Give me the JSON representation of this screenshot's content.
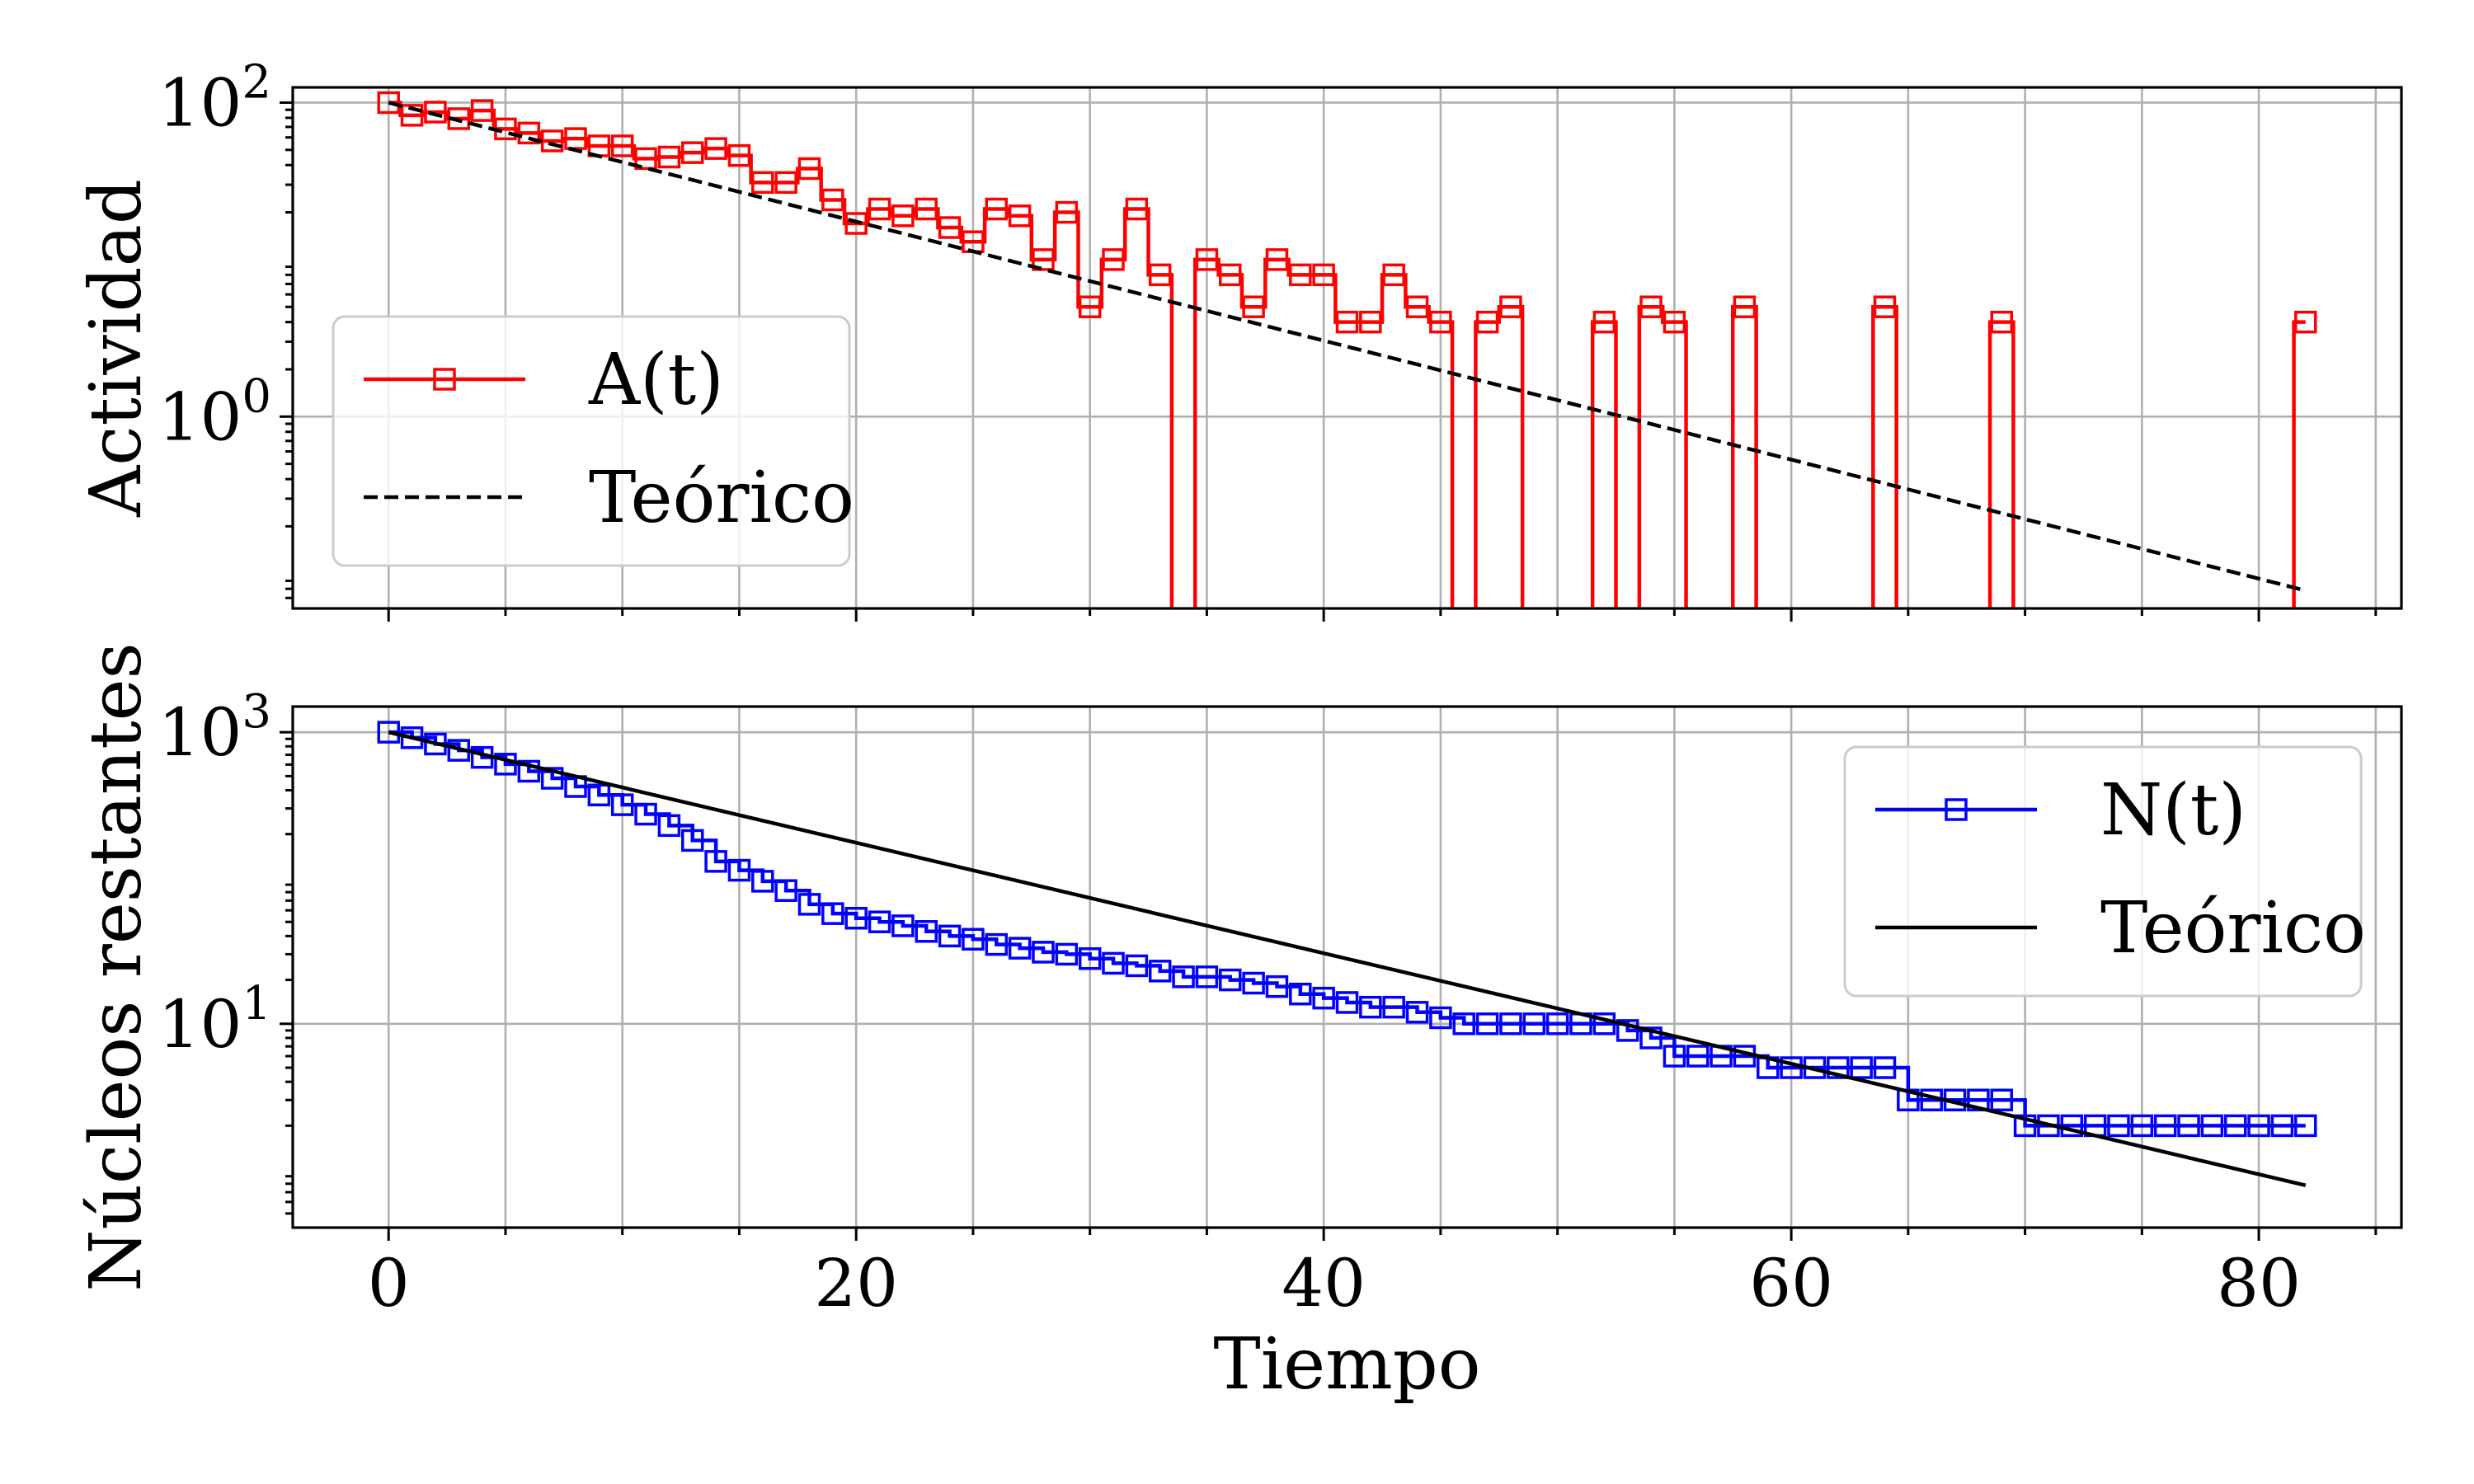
{
  "chart_data": [
    {
      "type": "line",
      "title": "",
      "xlabel": "",
      "ylabel": "Actividad",
      "yscale": "log",
      "xlim": [
        -4.1,
        86.1
      ],
      "ylim": [
        0.06,
        125
      ],
      "xticks": [
        0,
        20,
        40,
        60,
        80
      ],
      "yticks": [
        {
          "value": 1,
          "base": "10",
          "exp": "0"
        },
        {
          "value": 100,
          "base": "10",
          "exp": "2"
        }
      ],
      "show_xticklabels": false,
      "grid": true,
      "legend_position": "center-left",
      "series": [
        {
          "name": "A(t)",
          "color": "#ff0000",
          "style": "steps-mid",
          "marker": "square",
          "x": [
            0,
            1,
            2,
            3,
            4,
            5,
            6,
            7,
            8,
            9,
            10,
            11,
            12,
            13,
            14,
            15,
            16,
            17,
            18,
            19,
            20,
            21,
            22,
            23,
            24,
            25,
            26,
            27,
            28,
            29,
            30,
            31,
            32,
            33,
            34,
            35,
            36,
            37,
            38,
            39,
            40,
            41,
            42,
            43,
            44,
            45,
            46,
            47,
            48,
            49,
            50,
            51,
            52,
            53,
            54,
            55,
            56,
            57,
            58,
            59,
            60,
            61,
            62,
            63,
            64,
            65,
            66,
            67,
            68,
            69,
            70,
            71,
            72,
            73,
            74,
            75,
            76,
            77,
            78,
            79,
            80,
            81,
            82
          ],
          "y": [
            100,
            83,
            87,
            79,
            89,
            68,
            64,
            57,
            59,
            53,
            53,
            44,
            45,
            48,
            51,
            46,
            31,
            31,
            38,
            24,
            17,
            21,
            19,
            21,
            16,
            13,
            21,
            19,
            10,
            20,
            5,
            10,
            21,
            8,
            0,
            10,
            8,
            5,
            10,
            8,
            8,
            4,
            4,
            8,
            5,
            4,
            0,
            4,
            5,
            0,
            0,
            0,
            4,
            0,
            5,
            4,
            0,
            0,
            5,
            0,
            0,
            0,
            0,
            0,
            5,
            0,
            0,
            0,
            0,
            4,
            0,
            0,
            0,
            0,
            0,
            0,
            0,
            0,
            0,
            0,
            0,
            0,
            4
          ]
        },
        {
          "name": "Teórico",
          "color": "#000000",
          "style": "dashed",
          "x": [
            0,
            82
          ],
          "y": [
            100,
            0.078
          ]
        }
      ]
    },
    {
      "type": "line",
      "title": "",
      "xlabel": "Tiempo",
      "ylabel": "Núcleos restantes",
      "yscale": "log",
      "xlim": [
        -4.1,
        86.1
      ],
      "ylim": [
        0.4,
        1500
      ],
      "xticks": [
        0,
        20,
        40,
        60,
        80
      ],
      "xticklabels": [
        "0",
        "20",
        "40",
        "60",
        "80"
      ],
      "yticks": [
        {
          "value": 10,
          "base": "10",
          "exp": "1"
        },
        {
          "value": 1000,
          "base": "10",
          "exp": "3"
        }
      ],
      "show_xticklabels": true,
      "grid": true,
      "legend_position": "upper-right",
      "series": [
        {
          "name": "N(t)",
          "color": "#0000ff",
          "style": "steps-post",
          "marker": "square",
          "x": [
            0,
            1,
            2,
            3,
            4,
            5,
            6,
            7,
            8,
            9,
            10,
            11,
            12,
            13,
            14,
            15,
            16,
            17,
            18,
            19,
            20,
            21,
            22,
            23,
            24,
            25,
            26,
            27,
            28,
            29,
            30,
            31,
            32,
            33,
            34,
            35,
            36,
            37,
            38,
            39,
            40,
            41,
            42,
            43,
            44,
            45,
            46,
            47,
            48,
            49,
            50,
            51,
            52,
            53,
            54,
            55,
            56,
            57,
            58,
            59,
            60,
            61,
            62,
            63,
            64,
            65,
            66,
            67,
            68,
            69,
            70,
            71,
            72,
            73,
            74,
            75,
            76,
            77,
            78,
            79,
            80,
            81,
            82
          ],
          "y": [
            1000,
            917,
            830,
            751,
            672,
            604,
            540,
            483,
            424,
            371,
            318,
            274,
            229,
            181,
            130,
            113,
            95,
            82,
            66,
            57,
            53,
            50,
            47,
            43,
            40,
            38,
            35,
            33,
            31,
            30,
            28,
            26,
            25,
            23,
            21,
            21,
            20,
            19,
            18,
            16,
            15,
            14,
            13,
            13,
            12,
            11,
            10,
            10,
            10,
            10,
            10,
            10,
            10,
            9,
            8,
            6,
            6,
            6,
            6,
            5,
            5,
            5,
            5,
            5,
            5,
            3,
            3,
            3,
            3,
            3,
            2,
            2,
            2,
            2,
            2,
            2,
            2,
            2,
            2,
            2,
            2,
            2,
            2
          ]
        },
        {
          "name": "Teórico",
          "color": "#000000",
          "style": "solid",
          "x": [
            0,
            82
          ],
          "y": [
            1000,
            0.78
          ]
        }
      ]
    }
  ]
}
